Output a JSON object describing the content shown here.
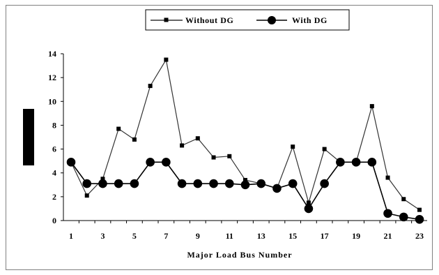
{
  "chart_data": {
    "type": "line",
    "xlabel": "Major Load Bus Number",
    "ylabel": "",
    "xlim": [
      1,
      23
    ],
    "ylim": [
      0,
      14
    ],
    "yticks": [
      0,
      2,
      4,
      6,
      8,
      10,
      12,
      14
    ],
    "xticks": [
      1,
      3,
      5,
      7,
      9,
      11,
      13,
      15,
      17,
      19,
      21,
      23
    ],
    "legend_position": "top-center",
    "grid": false,
    "x": [
      1,
      2,
      3,
      4,
      5,
      6,
      7,
      8,
      9,
      10,
      11,
      12,
      13,
      14,
      15,
      16,
      17,
      18,
      19,
      20,
      21,
      22,
      23
    ],
    "series": [
      {
        "name": "Without DG",
        "marker": "square",
        "color": "#333333",
        "values": [
          4.9,
          2.1,
          3.5,
          7.7,
          6.8,
          11.3,
          13.5,
          6.3,
          6.9,
          5.3,
          5.4,
          3.4,
          3.1,
          2.7,
          6.2,
          1.5,
          6.0,
          4.9,
          4.9,
          9.6,
          3.6,
          1.8,
          0.9
        ]
      },
      {
        "name": "With DG",
        "marker": "circle",
        "color": "#000000",
        "values": [
          4.9,
          3.1,
          3.1,
          3.1,
          3.1,
          4.9,
          4.9,
          3.1,
          3.1,
          3.1,
          3.1,
          3.0,
          3.1,
          2.7,
          3.1,
          1.0,
          3.1,
          4.9,
          4.9,
          4.9,
          0.6,
          0.3,
          0.1
        ]
      }
    ]
  }
}
